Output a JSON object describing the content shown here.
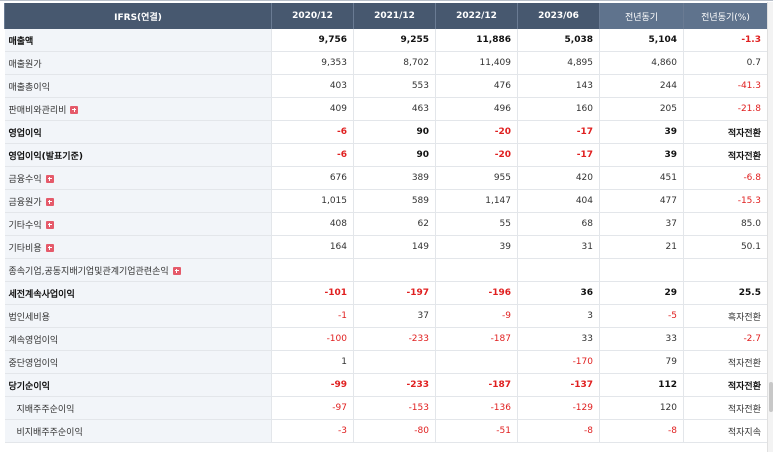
{
  "header": {
    "label_col": "IFRS(연결)",
    "periods": [
      "2020/12",
      "2021/12",
      "2022/12",
      "2023/06",
      "전년동기",
      "전년동기(%)"
    ]
  },
  "rows": [
    {
      "label": "매출액",
      "bold": true,
      "expand": false,
      "indent": false,
      "values": [
        "9,756",
        "9,255",
        "11,886",
        "5,038",
        "5,104",
        "-1.3"
      ],
      "neg": [
        false,
        false,
        false,
        false,
        false,
        true
      ]
    },
    {
      "label": "매출원가",
      "bold": false,
      "expand": false,
      "indent": false,
      "values": [
        "9,353",
        "8,702",
        "11,409",
        "4,895",
        "4,860",
        "0.7"
      ],
      "neg": [
        false,
        false,
        false,
        false,
        false,
        false
      ]
    },
    {
      "label": "매출총이익",
      "bold": false,
      "expand": false,
      "indent": false,
      "values": [
        "403",
        "553",
        "476",
        "143",
        "244",
        "-41.3"
      ],
      "neg": [
        false,
        false,
        false,
        false,
        false,
        true
      ]
    },
    {
      "label": "판매비와관리비",
      "bold": false,
      "expand": true,
      "indent": false,
      "values": [
        "409",
        "463",
        "496",
        "160",
        "205",
        "-21.8"
      ],
      "neg": [
        false,
        false,
        false,
        false,
        false,
        true
      ]
    },
    {
      "label": "영업이익",
      "bold": true,
      "expand": false,
      "indent": false,
      "values": [
        "-6",
        "90",
        "-20",
        "-17",
        "39",
        "적자전환"
      ],
      "neg": [
        true,
        false,
        true,
        true,
        false,
        false
      ]
    },
    {
      "label": "영업이익(발표기준)",
      "bold": true,
      "expand": false,
      "indent": false,
      "values": [
        "-6",
        "90",
        "-20",
        "-17",
        "39",
        "적자전환"
      ],
      "neg": [
        true,
        false,
        true,
        true,
        false,
        false
      ]
    },
    {
      "label": "금융수익",
      "bold": false,
      "expand": true,
      "indent": false,
      "values": [
        "676",
        "389",
        "955",
        "420",
        "451",
        "-6.8"
      ],
      "neg": [
        false,
        false,
        false,
        false,
        false,
        true
      ]
    },
    {
      "label": "금융원가",
      "bold": false,
      "expand": true,
      "indent": false,
      "values": [
        "1,015",
        "589",
        "1,147",
        "404",
        "477",
        "-15.3"
      ],
      "neg": [
        false,
        false,
        false,
        false,
        false,
        true
      ]
    },
    {
      "label": "기타수익",
      "bold": false,
      "expand": true,
      "indent": false,
      "values": [
        "408",
        "62",
        "55",
        "68",
        "37",
        "85.0"
      ],
      "neg": [
        false,
        false,
        false,
        false,
        false,
        false
      ]
    },
    {
      "label": "기타비용",
      "bold": false,
      "expand": true,
      "indent": false,
      "values": [
        "164",
        "149",
        "39",
        "31",
        "21",
        "50.1"
      ],
      "neg": [
        false,
        false,
        false,
        false,
        false,
        false
      ]
    },
    {
      "label": "종속기업,공동지배기업및관계기업관련손익",
      "bold": false,
      "expand": true,
      "indent": false,
      "values": [
        "",
        "",
        "",
        "",
        "",
        ""
      ],
      "neg": [
        false,
        false,
        false,
        false,
        false,
        false
      ]
    },
    {
      "label": "세전계속사업이익",
      "bold": true,
      "expand": false,
      "indent": false,
      "values": [
        "-101",
        "-197",
        "-196",
        "36",
        "29",
        "25.5"
      ],
      "neg": [
        true,
        true,
        true,
        false,
        false,
        false
      ]
    },
    {
      "label": "법인세비용",
      "bold": false,
      "expand": false,
      "indent": false,
      "values": [
        "-1",
        "37",
        "-9",
        "3",
        "-5",
        "흑자전환"
      ],
      "neg": [
        true,
        false,
        true,
        false,
        true,
        false
      ]
    },
    {
      "label": "계속영업이익",
      "bold": false,
      "expand": false,
      "indent": false,
      "values": [
        "-100",
        "-233",
        "-187",
        "33",
        "33",
        "-2.7"
      ],
      "neg": [
        true,
        true,
        true,
        false,
        false,
        true
      ]
    },
    {
      "label": "중단영업이익",
      "bold": false,
      "expand": false,
      "indent": false,
      "values": [
        "1",
        "",
        "",
        "-170",
        "79",
        "적자전환"
      ],
      "neg": [
        false,
        false,
        false,
        true,
        false,
        false
      ]
    },
    {
      "label": "당기순이익",
      "bold": true,
      "expand": false,
      "indent": false,
      "values": [
        "-99",
        "-233",
        "-187",
        "-137",
        "112",
        "적자전환"
      ],
      "neg": [
        true,
        true,
        true,
        true,
        false,
        false
      ]
    },
    {
      "label": "지배주주순이익",
      "bold": false,
      "expand": false,
      "indent": true,
      "values": [
        "-97",
        "-153",
        "-136",
        "-129",
        "120",
        "적자전환"
      ],
      "neg": [
        true,
        true,
        true,
        true,
        false,
        false
      ]
    },
    {
      "label": "비지배주주순이익",
      "bold": false,
      "expand": false,
      "indent": true,
      "values": [
        "-3",
        "-80",
        "-51",
        "-8",
        "-8",
        "적자지속"
      ],
      "neg": [
        true,
        true,
        true,
        true,
        true,
        false
      ]
    }
  ]
}
